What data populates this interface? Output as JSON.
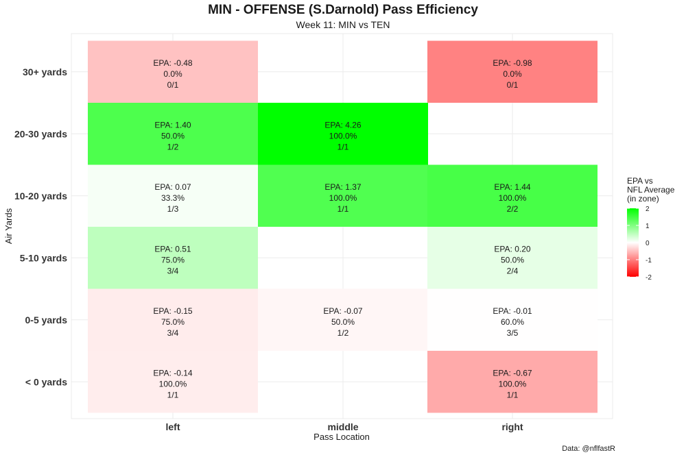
{
  "chart_data": {
    "type": "heatmap",
    "title": "MIN - OFFENSE (S.Darnold) Pass Efficiency",
    "subtitle": "Week 11: MIN vs TEN",
    "xlabel": "Pass Location",
    "ylabel": "Air Yards",
    "x_categories": [
      "left",
      "middle",
      "right"
    ],
    "y_categories": [
      "30+ yards",
      "20-30 yards",
      "10-20 yards",
      "5-10 yards",
      "0-5 yards",
      "< 0 yards"
    ],
    "cells": [
      {
        "x": "left",
        "y": "30+ yards",
        "epa": -0.48,
        "epa_label": "EPA: -0.48",
        "pct_label": "0.0%",
        "ratio_label": "0/1"
      },
      {
        "x": "right",
        "y": "30+ yards",
        "epa": -0.98,
        "epa_label": "EPA: -0.98",
        "pct_label": "0.0%",
        "ratio_label": "0/1"
      },
      {
        "x": "left",
        "y": "20-30 yards",
        "epa": 1.4,
        "epa_label": "EPA: 1.40",
        "pct_label": "50.0%",
        "ratio_label": "1/2"
      },
      {
        "x": "middle",
        "y": "20-30 yards",
        "epa": 4.26,
        "epa_label": "EPA: 4.26",
        "pct_label": "100.0%",
        "ratio_label": "1/1"
      },
      {
        "x": "left",
        "y": "10-20 yards",
        "epa": 0.07,
        "epa_label": "EPA: 0.07",
        "pct_label": "33.3%",
        "ratio_label": "1/3"
      },
      {
        "x": "middle",
        "y": "10-20 yards",
        "epa": 1.37,
        "epa_label": "EPA: 1.37",
        "pct_label": "100.0%",
        "ratio_label": "1/1"
      },
      {
        "x": "right",
        "y": "10-20 yards",
        "epa": 1.44,
        "epa_label": "EPA: 1.44",
        "pct_label": "100.0%",
        "ratio_label": "2/2"
      },
      {
        "x": "left",
        "y": "5-10 yards",
        "epa": 0.51,
        "epa_label": "EPA: 0.51",
        "pct_label": "75.0%",
        "ratio_label": "3/4"
      },
      {
        "x": "right",
        "y": "5-10 yards",
        "epa": 0.2,
        "epa_label": "EPA: 0.20",
        "pct_label": "50.0%",
        "ratio_label": "2/4"
      },
      {
        "x": "left",
        "y": "0-5 yards",
        "epa": -0.15,
        "epa_label": "EPA: -0.15",
        "pct_label": "75.0%",
        "ratio_label": "3/4"
      },
      {
        "x": "middle",
        "y": "0-5 yards",
        "epa": -0.07,
        "epa_label": "EPA: -0.07",
        "pct_label": "50.0%",
        "ratio_label": "1/2"
      },
      {
        "x": "right",
        "y": "0-5 yards",
        "epa": -0.01,
        "epa_label": "EPA: -0.01",
        "pct_label": "60.0%",
        "ratio_label": "3/5"
      },
      {
        "x": "left",
        "y": "< 0 yards",
        "epa": -0.14,
        "epa_label": "EPA: -0.14",
        "pct_label": "100.0%",
        "ratio_label": "1/1"
      },
      {
        "x": "right",
        "y": "< 0 yards",
        "epa": -0.67,
        "epa_label": "EPA: -0.67",
        "pct_label": "100.0%",
        "ratio_label": "1/1"
      }
    ],
    "legend": {
      "title_lines": [
        "EPA vs",
        "NFL Average",
        "(in zone)"
      ],
      "range": [
        -2,
        2
      ],
      "ticks": [
        2,
        1,
        0,
        -1,
        -2
      ],
      "placement": "right"
    },
    "colors": {
      "positive": "#00ff00",
      "neutral": "#ffffff",
      "negative": "#ff0000",
      "grid": "#ebebeb"
    },
    "grid": true
  },
  "credit": "Data: @nflfastR"
}
